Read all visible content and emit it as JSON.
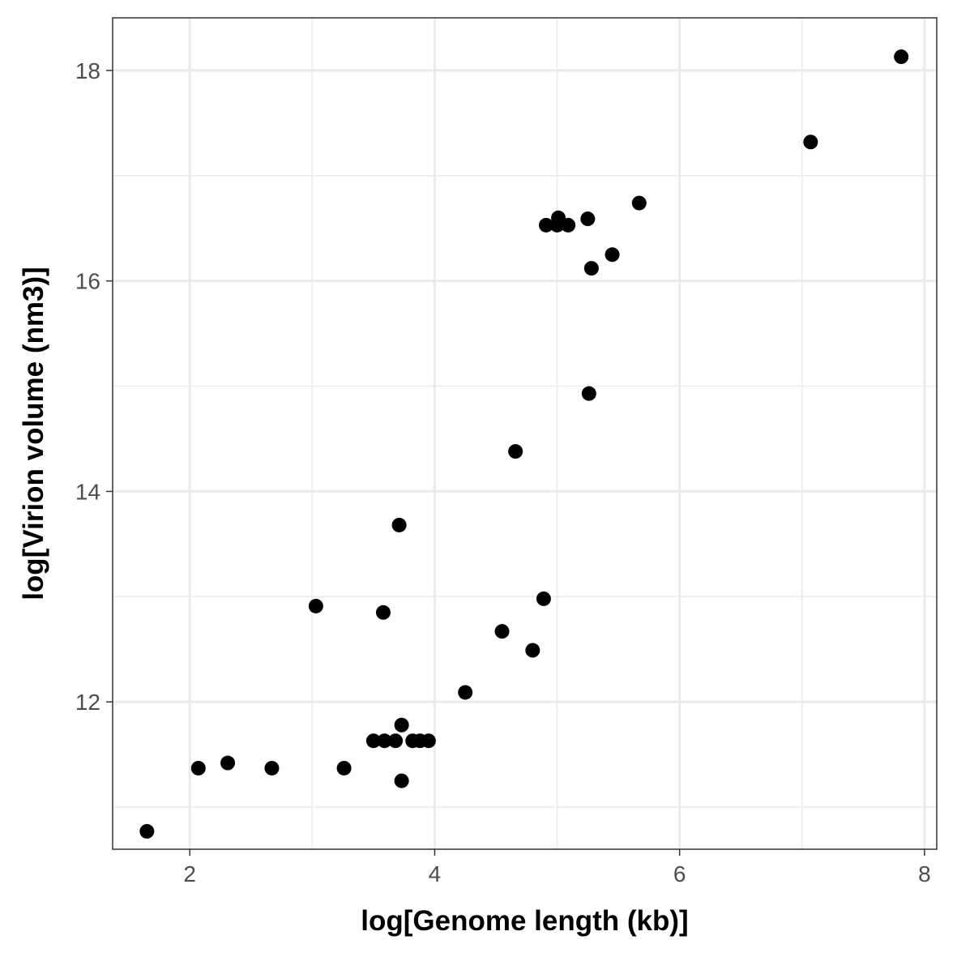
{
  "chart_data": {
    "type": "scatter",
    "title": "",
    "xlabel": "log[Genome length (kb)]",
    "ylabel": "log[Virion volume (nm3)]",
    "xlim": [
      1.37,
      8.1
    ],
    "ylim": [
      10.6,
      18.5
    ],
    "x_ticks": [
      2,
      4,
      6,
      8
    ],
    "x_tick_labels": [
      "2",
      "4",
      "6",
      "8"
    ],
    "y_ticks": [
      12,
      14,
      16,
      18
    ],
    "y_tick_labels": [
      "12",
      "14",
      "16",
      "18"
    ],
    "x_minor_ticks": [
      3,
      5,
      7
    ],
    "y_minor_ticks": [
      11,
      13,
      15,
      17
    ],
    "grid": true,
    "legend": "none",
    "theme": "bw",
    "colors": {
      "point": "#000000",
      "grid": "#ebebeb",
      "panel_border": "#333333",
      "tick_label": "#4d4d4d"
    },
    "points": [
      {
        "x": 1.65,
        "y": 10.77
      },
      {
        "x": 2.07,
        "y": 11.37
      },
      {
        "x": 2.31,
        "y": 11.42
      },
      {
        "x": 2.67,
        "y": 11.37
      },
      {
        "x": 3.03,
        "y": 12.91
      },
      {
        "x": 3.26,
        "y": 11.37
      },
      {
        "x": 3.5,
        "y": 11.63
      },
      {
        "x": 3.59,
        "y": 11.63
      },
      {
        "x": 3.58,
        "y": 12.85
      },
      {
        "x": 3.68,
        "y": 11.63
      },
      {
        "x": 3.71,
        "y": 13.68
      },
      {
        "x": 3.73,
        "y": 11.78
      },
      {
        "x": 3.73,
        "y": 11.25
      },
      {
        "x": 3.82,
        "y": 11.63
      },
      {
        "x": 3.88,
        "y": 11.63
      },
      {
        "x": 3.95,
        "y": 11.63
      },
      {
        "x": 4.25,
        "y": 12.09
      },
      {
        "x": 4.55,
        "y": 12.67
      },
      {
        "x": 4.66,
        "y": 14.38
      },
      {
        "x": 4.8,
        "y": 12.49
      },
      {
        "x": 4.89,
        "y": 12.98
      },
      {
        "x": 4.91,
        "y": 16.53
      },
      {
        "x": 5.0,
        "y": 16.53
      },
      {
        "x": 5.01,
        "y": 16.6
      },
      {
        "x": 5.09,
        "y": 16.53
      },
      {
        "x": 5.25,
        "y": 16.59
      },
      {
        "x": 5.26,
        "y": 14.93
      },
      {
        "x": 5.28,
        "y": 16.12
      },
      {
        "x": 5.45,
        "y": 16.25
      },
      {
        "x": 5.67,
        "y": 16.74
      },
      {
        "x": 7.07,
        "y": 17.32
      },
      {
        "x": 7.81,
        "y": 18.13
      }
    ]
  }
}
